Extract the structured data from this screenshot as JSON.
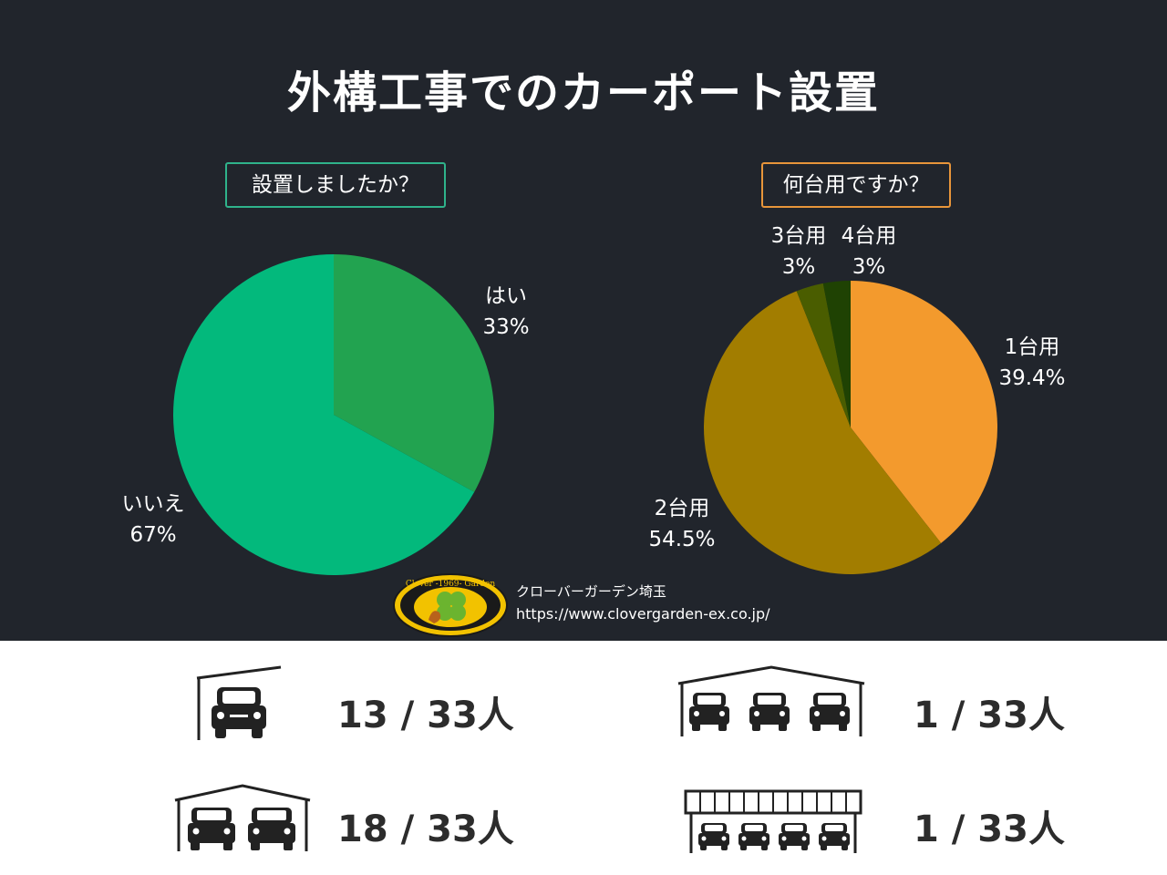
{
  "title": "外構工事でのカーポート設置",
  "credit": {
    "name": "クローバーガーデン埼玉",
    "url": "https://www.clovergarden-ex.co.jp/",
    "logo_text": "Clover -1969- Garden"
  },
  "colors": {
    "background": "#21252c",
    "hai": "#22a350",
    "iie": "#03b97c",
    "one": "#f39a2d",
    "two": "#a27d00",
    "three": "#4a5d00",
    "four": "#1f4203"
  },
  "chart_data": [
    {
      "type": "pie",
      "title": "設置しましたか？",
      "slices": [
        {
          "label": "はい",
          "value": 33,
          "value_text": "33%"
        },
        {
          "label": "いいえ",
          "value": 67,
          "value_text": "67%"
        }
      ]
    },
    {
      "type": "pie",
      "title": "何台用ですか？",
      "slices": [
        {
          "label": "1台用",
          "value": 39.4,
          "value_text": "39.4%"
        },
        {
          "label": "2台用",
          "value": 54.5,
          "value_text": "54.5%"
        },
        {
          "label": "3台用",
          "value": 3,
          "value_text": "3%"
        },
        {
          "label": "4台用",
          "value": 3,
          "value_text": "3%"
        }
      ]
    }
  ],
  "stats": [
    {
      "icon": "carport-1-car-icon",
      "text": "13 / 33人"
    },
    {
      "icon": "carport-3-car-icon",
      "text": "1 / 33人"
    },
    {
      "icon": "carport-2-car-icon",
      "text": "18 / 33人"
    },
    {
      "icon": "carport-4-car-icon",
      "text": "1 / 33人"
    }
  ]
}
